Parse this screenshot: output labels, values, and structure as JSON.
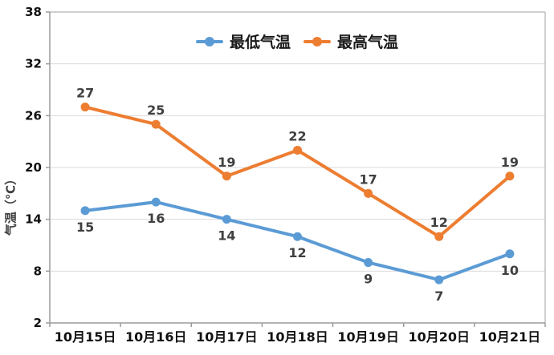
{
  "chart_data": {
    "type": "line",
    "categories": [
      "10月15日",
      "10月16日",
      "10月17日",
      "10月18日",
      "10月19日",
      "10月20日",
      "10月21日"
    ],
    "series": [
      {
        "name": "最低气温",
        "values": [
          15,
          16,
          14,
          12,
          9,
          7,
          10
        ],
        "color": "#5B9BD5",
        "label_position": "below"
      },
      {
        "name": "最高气温",
        "values": [
          27,
          25,
          19,
          22,
          17,
          12,
          19
        ],
        "color": "#ED7D31",
        "label_position": "above"
      }
    ],
    "title": "",
    "xlabel": "",
    "ylabel": "气温（℃）",
    "ylim": [
      2,
      38
    ],
    "yticks": [
      2,
      8,
      14,
      20,
      26,
      32,
      38
    ],
    "grid": true,
    "legend_position": "top-center"
  },
  "colors": {
    "grid": "#d9d9d9",
    "plot_border": "#bfbfbf",
    "axis": "#9b9b9b",
    "tick_label": "#111111",
    "data_label": "#404040"
  }
}
